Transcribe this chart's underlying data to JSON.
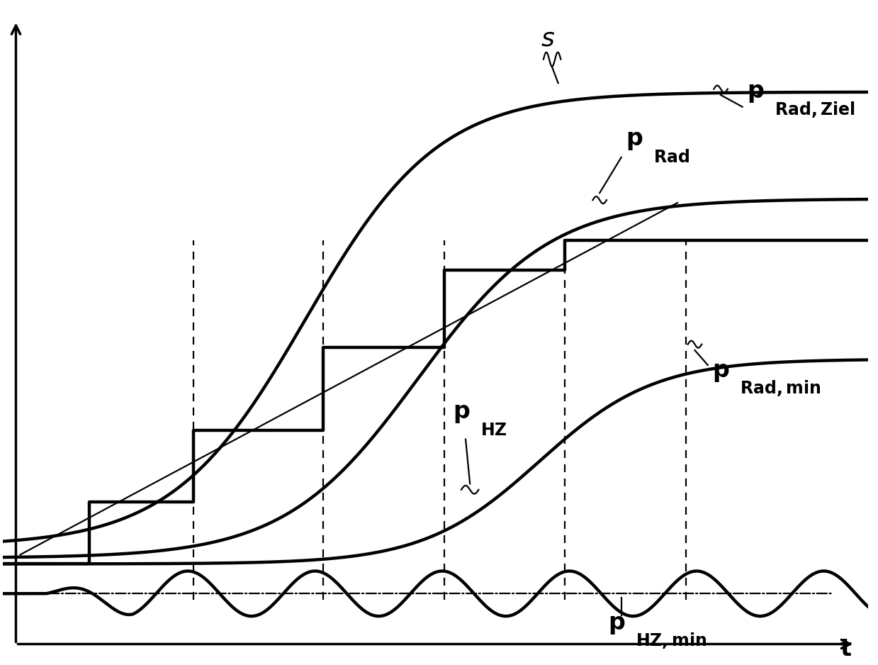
{
  "bg_color": "#ffffff",
  "line_color": "#000000",
  "lw_thick": 3.2,
  "lw_thin": 1.6,
  "xmin": 0,
  "xmax": 10,
  "ymin": -1.5,
  "ymax": 9.5,
  "y_hz_base": -0.45,
  "dashed_x": [
    2.2,
    3.7,
    5.1,
    6.5,
    7.9
  ],
  "step_x": [
    0.0,
    1.0,
    1.0,
    2.2,
    2.2,
    3.7,
    3.7,
    5.1,
    5.1,
    6.5,
    6.5,
    10.0
  ],
  "step_y": [
    0.05,
    0.05,
    1.1,
    1.1,
    2.3,
    2.3,
    3.7,
    3.7,
    5.0,
    5.0,
    5.5,
    5.5
  ]
}
